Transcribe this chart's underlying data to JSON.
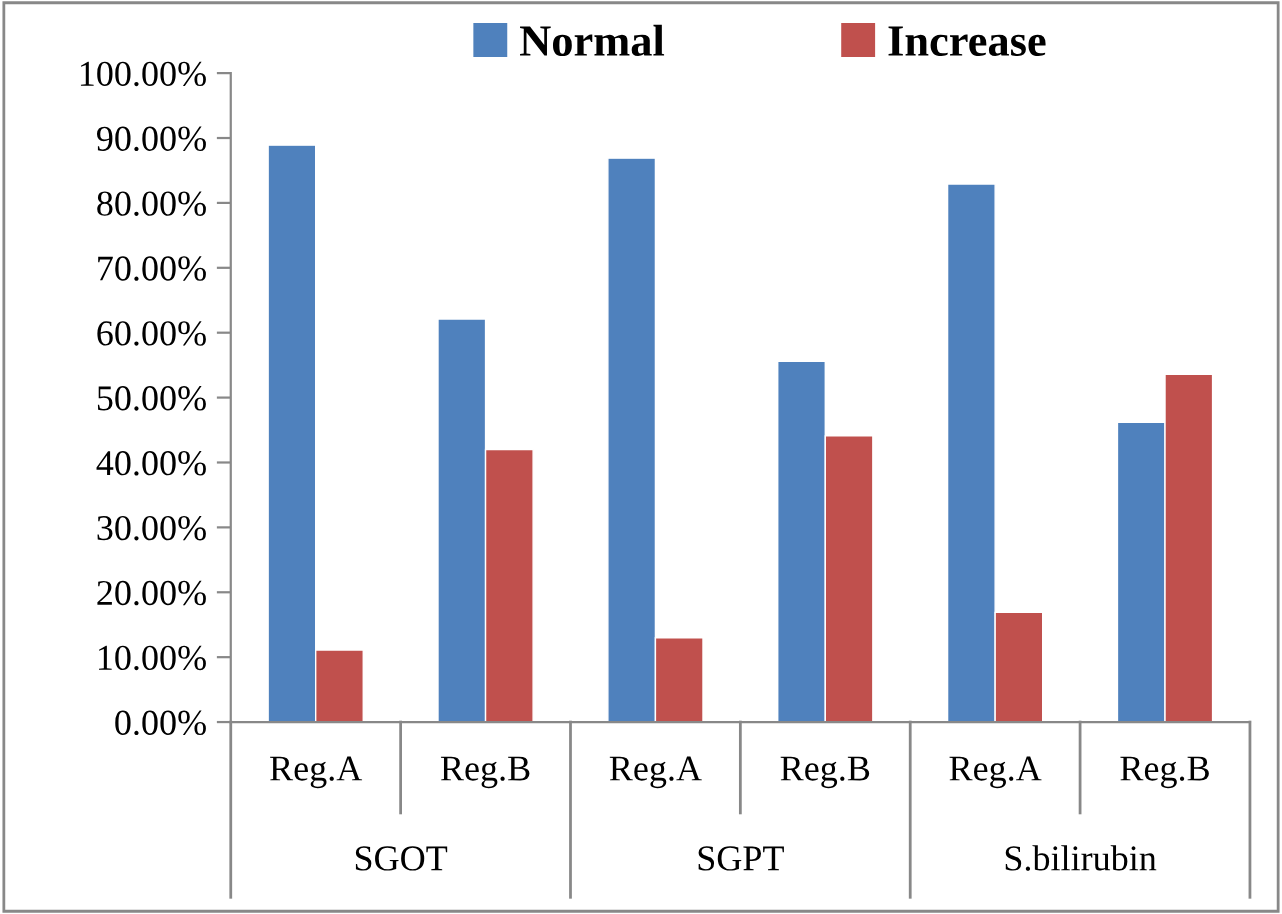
{
  "chart_data": {
    "type": "bar",
    "categories": [
      "Reg.A",
      "Reg.B",
      "Reg.A",
      "Reg.B",
      "Reg.A",
      "Reg.B"
    ],
    "series": [
      {
        "name": "Normal",
        "color": "#4f81bd",
        "values": [
          88.9,
          62.1,
          86.9,
          55.6,
          82.9,
          46.2
        ]
      },
      {
        "name": "Increase",
        "color": "#c0504d",
        "values": [
          11.1,
          42.0,
          13.0,
          44.1,
          16.9,
          53.6
        ]
      }
    ],
    "annotations": [
      "SGOT",
      "SGPT",
      "S.bilirubin"
    ],
    "ylim": [
      0,
      100
    ],
    "yticks": [
      {
        "value": 0,
        "label": "0.00%"
      },
      {
        "value": 10,
        "label": "10.00%"
      },
      {
        "value": 20,
        "label": "20.00%"
      },
      {
        "value": 30,
        "label": "30.00%"
      },
      {
        "value": 40,
        "label": "40.00%"
      },
      {
        "value": 50,
        "label": "50.00%"
      },
      {
        "value": 60,
        "label": "60.00%"
      },
      {
        "value": 70,
        "label": "70.00%"
      },
      {
        "value": 80,
        "label": "80.00%"
      },
      {
        "value": 90,
        "label": "90.00%"
      },
      {
        "value": 100,
        "label": "100.00%"
      }
    ],
    "grid": false,
    "legend": "top"
  }
}
